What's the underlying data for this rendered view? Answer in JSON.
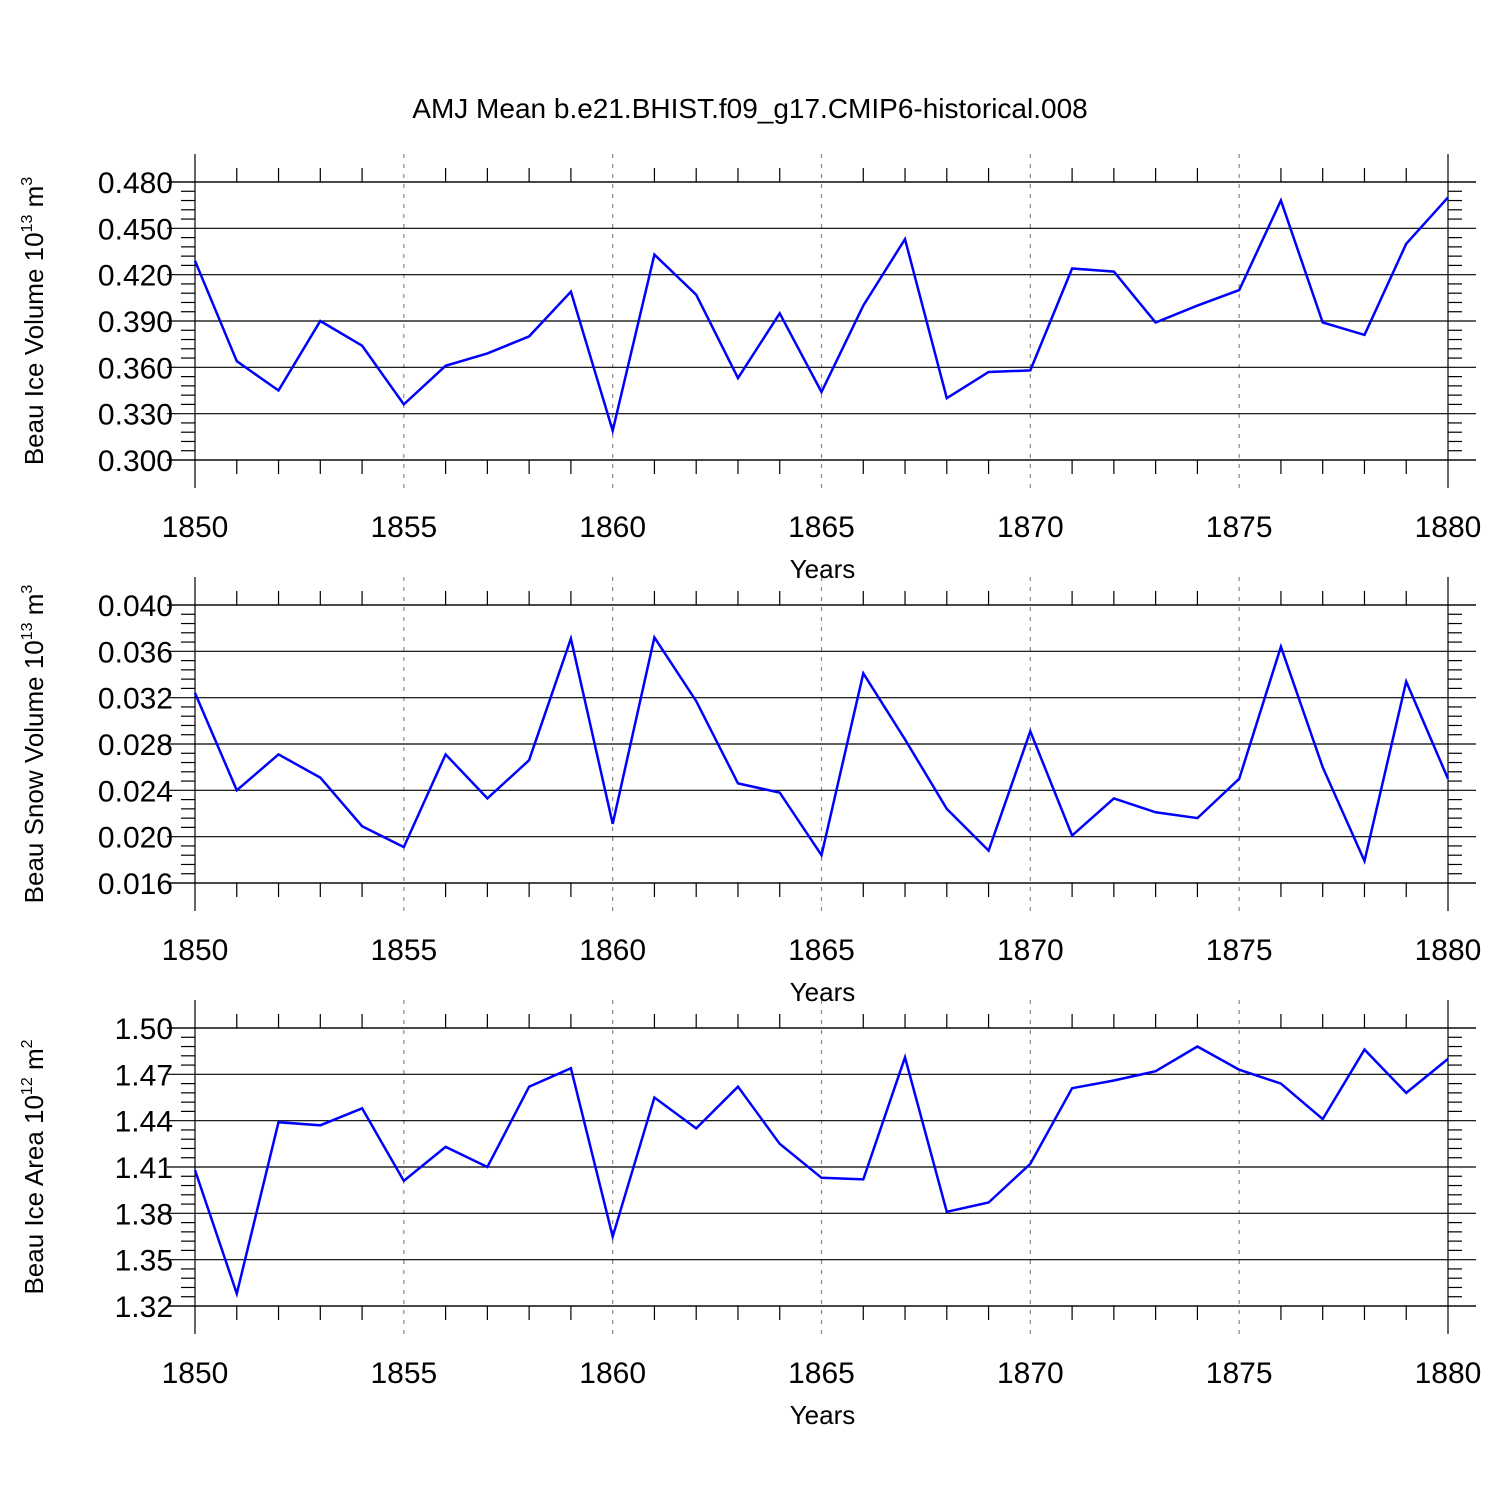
{
  "figure": {
    "title": "AMJ Mean b.e21.BHIST.f09_g17.CMIP6-historical.008"
  },
  "colors": {
    "series": "#0000ff",
    "grid": "#888888",
    "axis": "#000000"
  },
  "chart_data": [
    {
      "type": "line",
      "ylabel": "Beau Ice Volume 10",
      "ylabel_exp": "13",
      "ylabel_unit": "m",
      "ylabel_unit_exp": "3",
      "xlabel": "Years",
      "xlim": [
        1850,
        1880
      ],
      "ylim": [
        0.3,
        0.48
      ],
      "xticks": [
        1850,
        1855,
        1860,
        1865,
        1870,
        1875,
        1880
      ],
      "yticks": [
        "0.300",
        "0.330",
        "0.360",
        "0.390",
        "0.420",
        "0.450",
        "0.480"
      ],
      "ytick_values": [
        0.3,
        0.33,
        0.36,
        0.39,
        0.42,
        0.45,
        0.48
      ],
      "grid_x": [
        1855,
        1860,
        1865,
        1870,
        1875
      ],
      "x": [
        1850,
        1851,
        1852,
        1853,
        1854,
        1855,
        1856,
        1857,
        1858,
        1859,
        1860,
        1861,
        1862,
        1863,
        1864,
        1865,
        1866,
        1867,
        1868,
        1869,
        1870,
        1871,
        1872,
        1873,
        1874,
        1875,
        1876,
        1877,
        1878,
        1879,
        1880
      ],
      "y": [
        0.429,
        0.364,
        0.345,
        0.39,
        0.374,
        0.336,
        0.361,
        0.369,
        0.38,
        0.409,
        0.319,
        0.433,
        0.407,
        0.353,
        0.395,
        0.344,
        0.4,
        0.443,
        0.34,
        0.357,
        0.358,
        0.424,
        0.422,
        0.389,
        0.4,
        0.41,
        0.468,
        0.389,
        0.381,
        0.44,
        0.47
      ]
    },
    {
      "type": "line",
      "ylabel": "Beau Snow Volume 10",
      "ylabel_exp": "13",
      "ylabel_unit": "m",
      "ylabel_unit_exp": "3",
      "xlabel": "Years",
      "xlim": [
        1850,
        1880
      ],
      "ylim": [
        0.016,
        0.04
      ],
      "xticks": [
        1850,
        1855,
        1860,
        1865,
        1870,
        1875,
        1880
      ],
      "yticks": [
        "0.016",
        "0.020",
        "0.024",
        "0.028",
        "0.032",
        "0.036",
        "0.040"
      ],
      "ytick_values": [
        0.016,
        0.02,
        0.024,
        0.028,
        0.032,
        0.036,
        0.04
      ],
      "grid_x": [
        1855,
        1860,
        1865,
        1870,
        1875
      ],
      "x": [
        1850,
        1851,
        1852,
        1853,
        1854,
        1855,
        1856,
        1857,
        1858,
        1859,
        1860,
        1861,
        1862,
        1863,
        1864,
        1865,
        1866,
        1867,
        1868,
        1869,
        1870,
        1871,
        1872,
        1873,
        1874,
        1875,
        1876,
        1877,
        1878,
        1879,
        1880
      ],
      "y": [
        0.0324,
        0.024,
        0.0271,
        0.0251,
        0.0209,
        0.0191,
        0.0271,
        0.0233,
        0.0266,
        0.0371,
        0.0211,
        0.0372,
        0.0317,
        0.0246,
        0.0238,
        0.0184,
        0.0341,
        0.0284,
        0.0224,
        0.0188,
        0.0291,
        0.0201,
        0.0233,
        0.0221,
        0.0216,
        0.025,
        0.0364,
        0.026,
        0.0179,
        0.0334,
        0.025
      ]
    },
    {
      "type": "line",
      "ylabel": "Beau Ice Area 10",
      "ylabel_exp": "12",
      "ylabel_unit": "m",
      "ylabel_unit_exp": "2",
      "xlabel": "Years",
      "xlim": [
        1850,
        1880
      ],
      "ylim": [
        1.32,
        1.5
      ],
      "xticks": [
        1850,
        1855,
        1860,
        1865,
        1870,
        1875,
        1880
      ],
      "yticks": [
        "1.32",
        "1.35",
        "1.38",
        "1.41",
        "1.44",
        "1.47",
        "1.50"
      ],
      "ytick_values": [
        1.32,
        1.35,
        1.38,
        1.41,
        1.44,
        1.47,
        1.5
      ],
      "grid_x": [
        1855,
        1860,
        1865,
        1870,
        1875
      ],
      "x": [
        1850,
        1851,
        1852,
        1853,
        1854,
        1855,
        1856,
        1857,
        1858,
        1859,
        1860,
        1861,
        1862,
        1863,
        1864,
        1865,
        1866,
        1867,
        1868,
        1869,
        1870,
        1871,
        1872,
        1873,
        1874,
        1875,
        1876,
        1877,
        1878,
        1879,
        1880
      ],
      "y": [
        1.408,
        1.328,
        1.439,
        1.437,
        1.448,
        1.401,
        1.423,
        1.41,
        1.462,
        1.474,
        1.365,
        1.455,
        1.435,
        1.462,
        1.425,
        1.403,
        1.402,
        1.481,
        1.381,
        1.387,
        1.412,
        1.461,
        1.466,
        1.472,
        1.488,
        1.473,
        1.464,
        1.441,
        1.486,
        1.458,
        1.48
      ]
    }
  ]
}
